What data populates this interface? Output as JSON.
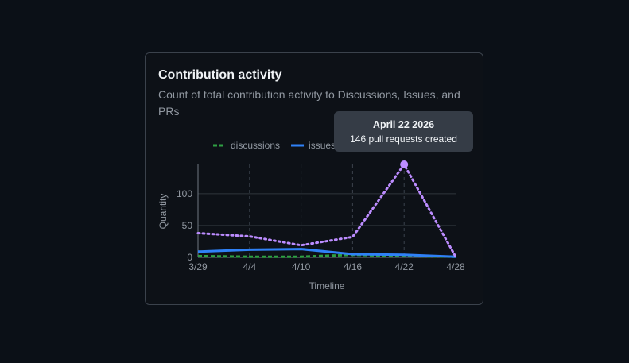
{
  "card": {
    "title": "Contribution activity",
    "subtitle": "Count of total contribution activity to Discussions, Issues, and PRs"
  },
  "tooltip": {
    "date": "April 22 2026",
    "value": "146 pull requests created"
  },
  "colors": {
    "discussions": "#2ea043",
    "issues": "#2f81f7",
    "pull_requests": "#bc8cff"
  },
  "chart_data": {
    "type": "line",
    "xlabel": "Timeline",
    "ylabel": "Quantity",
    "categories": [
      "3/29",
      "4/4",
      "4/10",
      "4/16",
      "4/22",
      "4/28"
    ],
    "yticks": [
      0,
      50,
      100
    ],
    "ylim": [
      0,
      146
    ],
    "grid": true,
    "legend_position": "top",
    "series": [
      {
        "name": "discussions",
        "values": [
          2,
          1,
          1,
          4,
          2,
          1
        ],
        "color": "#2ea043",
        "style": "dashed"
      },
      {
        "name": "issues",
        "values": [
          9,
          12,
          13,
          5,
          4,
          1
        ],
        "color": "#2f81f7",
        "style": "solid"
      },
      {
        "name": "",
        "values": [
          38,
          33,
          19,
          32,
          146,
          1
        ],
        "color": "#bc8cff",
        "style": "dotted"
      }
    ],
    "highlight": {
      "series_index": 2,
      "category_index": 4
    }
  }
}
